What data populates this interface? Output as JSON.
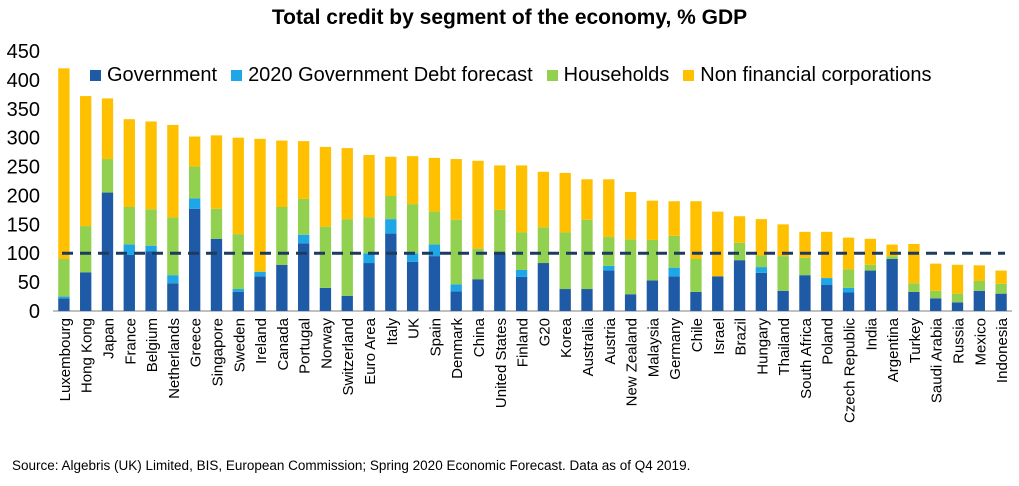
{
  "title": "Total credit by segment of the economy, % GDP",
  "source": "Source: Algebris (UK) Limited, BIS, European Commission; Spring 2020 Economic Forecast. Data as of Q4 2019.",
  "colors": {
    "government": "#1f5aa6",
    "forecast": "#1ea6e6",
    "households": "#92d050",
    "nfc": "#ffc000",
    "reference_line": "#1f3a5f"
  },
  "chart_data": {
    "type": "bar",
    "stacked": true,
    "title": "Total credit by segment of the economy, % GDP",
    "xlabel": "",
    "ylabel": "",
    "ylim": [
      0,
      450
    ],
    "yticks": [
      0,
      50,
      100,
      150,
      200,
      250,
      300,
      350,
      400,
      450
    ],
    "grid": false,
    "legend_position": "top",
    "reference_line": 100,
    "categories": [
      "Luxembourg",
      "Hong Kong",
      "Japan",
      "France",
      "Belgium",
      "Netherlands",
      "Greece",
      "Singapore",
      "Sweden",
      "Ireland",
      "Canada",
      "Portugal",
      "Norway",
      "Switzerland",
      "Euro Area",
      "Italy",
      "UK",
      "Spain",
      "Denmark",
      "China",
      "United States",
      "Finland",
      "G20",
      "Korea",
      "Australia",
      "Austria",
      "New Zealand",
      "Malaysia",
      "Germany",
      "Chile",
      "Israel",
      "Brazil",
      "Hungary",
      "Thailand",
      "South Africa",
      "Poland",
      "Czech Republic",
      "India",
      "Argentina",
      "Turkey",
      "Saudi Arabia",
      "Russia",
      "Mexico",
      "Indonesia"
    ],
    "series": [
      {
        "name": "Government",
        "values": [
          22,
          67,
          205,
          97,
          103,
          48,
          177,
          125,
          33,
          60,
          80,
          117,
          40,
          26,
          83,
          134,
          85,
          95,
          34,
          55,
          100,
          59,
          83,
          38,
          38,
          70,
          29,
          53,
          60,
          33,
          60,
          88,
          66,
          35,
          62,
          45,
          32,
          70,
          90,
          33,
          22,
          15,
          35,
          30
        ]
      },
      {
        "name": "2020 Government Debt forecast",
        "values": [
          3,
          0,
          0,
          18,
          10,
          14,
          18,
          0,
          5,
          8,
          0,
          15,
          0,
          0,
          17,
          25,
          15,
          20,
          12,
          0,
          0,
          12,
          0,
          0,
          0,
          8,
          0,
          0,
          15,
          0,
          0,
          0,
          10,
          0,
          0,
          12,
          8,
          0,
          0,
          0,
          0,
          0,
          0,
          0
        ]
      },
      {
        "name": "Households",
        "values": [
          65,
          80,
          58,
          65,
          63,
          100,
          55,
          52,
          95,
          0,
          100,
          62,
          106,
          133,
          62,
          40,
          85,
          57,
          112,
          53,
          75,
          65,
          62,
          98,
          120,
          50,
          95,
          70,
          55,
          57,
          0,
          30,
          20,
          60,
          30,
          0,
          32,
          10,
          5,
          15,
          13,
          15,
          17,
          17
        ]
      },
      {
        "name": "Non financial corporations",
        "values": [
          330,
          225,
          105,
          152,
          152,
          160,
          52,
          127,
          167,
          230,
          115,
          100,
          138,
          123,
          108,
          68,
          83,
          93,
          105,
          152,
          77,
          116,
          96,
          103,
          70,
          100,
          82,
          68,
          60,
          100,
          112,
          46,
          63,
          55,
          45,
          80,
          55,
          45,
          20,
          68,
          47,
          50,
          27,
          23
        ]
      }
    ]
  }
}
